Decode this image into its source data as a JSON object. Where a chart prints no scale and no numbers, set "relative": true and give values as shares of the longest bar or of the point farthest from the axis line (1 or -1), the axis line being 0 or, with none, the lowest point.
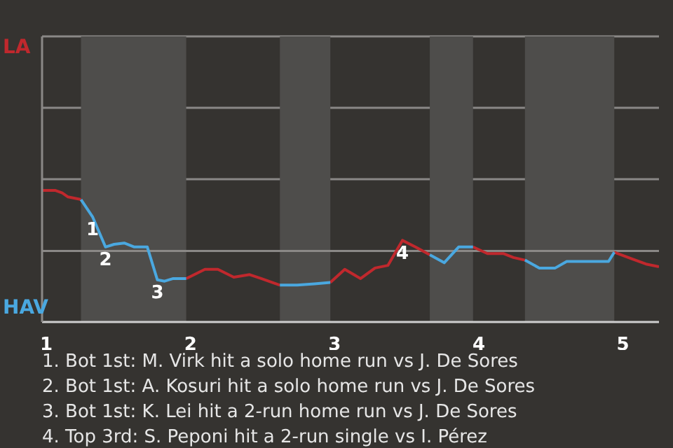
{
  "chart_data": {
    "type": "line",
    "relative": true,
    "x": [
      0.97,
      1.06,
      1.11,
      1.15,
      1.24,
      1.32,
      1.41,
      1.47,
      1.54,
      1.61,
      1.7,
      1.77,
      1.82,
      1.88,
      1.97,
      2.1,
      2.19,
      2.3,
      2.41,
      2.49,
      2.62,
      2.74,
      2.86,
      2.97,
      3.07,
      3.18,
      3.28,
      3.37,
      3.47,
      3.56,
      3.66,
      3.76,
      3.86,
      3.96,
      4.06,
      4.17,
      4.24,
      4.32,
      4.42,
      4.53,
      4.61,
      4.9,
      4.94,
      5.06,
      5.16,
      5.25
    ],
    "series": [
      {
        "color": "#c0282d",
        "values": [
          1,
          1,
          0.98,
          0.95,
          0.93,
          null,
          null,
          null,
          null,
          null,
          null,
          null,
          null,
          null,
          0.33,
          0.4,
          0.4,
          0.34,
          0.36,
          0.33,
          0.28,
          null,
          null,
          0.3,
          0.4,
          0.33,
          0.41,
          0.43,
          0.62,
          0.57,
          0.51,
          null,
          null,
          0.57,
          0.52,
          0.52,
          0.49,
          0.47,
          null,
          null,
          null,
          null,
          0.53,
          0.48,
          0.44,
          0.42
        ]
      },
      {
        "color": "#4aa8e0",
        "values": [
          null,
          null,
          null,
          null,
          0.93,
          0.8,
          0.57,
          0.59,
          0.6,
          0.57,
          0.57,
          0.32,
          0.31,
          0.33,
          0.33,
          null,
          null,
          null,
          null,
          null,
          0.28,
          0.28,
          0.29,
          0.3,
          null,
          null,
          null,
          null,
          null,
          null,
          0.51,
          0.45,
          0.57,
          0.57,
          null,
          null,
          null,
          0.47,
          0.41,
          0.41,
          0.46,
          0.46,
          0.53,
          null,
          null,
          null
        ]
      }
    ],
    "xlim": [
      0.97,
      5.25
    ],
    "xticks": [
      1,
      2,
      3,
      4,
      5
    ],
    "ref_lines": [
      {
        "axis": "y",
        "value": 0.54,
        "color": "#8a8886"
      }
    ],
    "bands": [
      {
        "axis": "x",
        "from": 1.24,
        "to": 1.97,
        "color": "#4e4d4b"
      },
      {
        "axis": "x",
        "from": 2.62,
        "to": 2.97,
        "color": "#4e4d4b"
      },
      {
        "axis": "x",
        "from": 3.66,
        "to": 3.96,
        "color": "#4e4d4b"
      },
      {
        "axis": "x",
        "from": 4.32,
        "to": 4.94,
        "color": "#4e4d4b"
      }
    ],
    "annotations": [
      "LA",
      "HAV",
      {
        "text": "1",
        "x": 1.32,
        "y": 0.8
      },
      {
        "text": "2",
        "x": 1.41,
        "y": 0.57
      },
      {
        "text": "3",
        "x": 1.77,
        "y": 0.32
      },
      {
        "text": "4",
        "x": 3.47,
        "y": 0.62
      },
      "1. Bot 1st: M. Virk hit a solo home run vs J. De Sores",
      "2. Bot 1st: A. Kosuri hit a solo home run vs J. De Sores",
      "3. Bot 1st: K. Lei hit a 2-run home run vs J. De Sores",
      "4. Top 3rd: S. Peponi hit a 2-run single vs I. Pérez"
    ]
  }
}
